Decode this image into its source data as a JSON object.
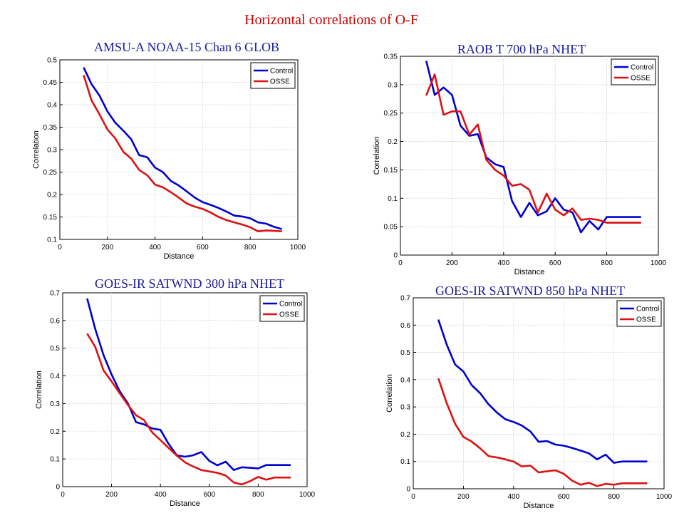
{
  "title": "Horizontal correlations of O-F",
  "title_color": "#cc0000",
  "series_colors": {
    "Control": "#0000d0",
    "OSSE": "#dd1111"
  },
  "chart_data": [
    {
      "type": "line",
      "title": "AMSU-A NOAA-15 Chan 6 GLOB",
      "title_color": "#1a1a99",
      "xlabel": "Distance",
      "ylabel": "Correlation",
      "xlim": [
        0,
        1000
      ],
      "ylim": [
        0.1,
        0.5
      ],
      "xticks": [
        0,
        200,
        400,
        600,
        800,
        1000
      ],
      "yticks": [
        0.1,
        0.15,
        0.2,
        0.25,
        0.3,
        0.35,
        0.4,
        0.45,
        0.5
      ],
      "grid": true,
      "legend": "top-right",
      "x": [
        100,
        133,
        167,
        200,
        233,
        267,
        300,
        333,
        367,
        400,
        433,
        467,
        500,
        533,
        567,
        600,
        633,
        667,
        700,
        733,
        767,
        800,
        833,
        867,
        900,
        933
      ],
      "series": [
        {
          "name": "Control",
          "values": [
            0.483,
            0.446,
            0.42,
            0.385,
            0.36,
            0.342,
            0.323,
            0.288,
            0.283,
            0.26,
            0.25,
            0.23,
            0.22,
            0.207,
            0.193,
            0.183,
            0.177,
            0.17,
            0.162,
            0.153,
            0.151,
            0.147,
            0.138,
            0.135,
            0.128,
            0.123
          ]
        },
        {
          "name": "OSSE",
          "values": [
            0.466,
            0.41,
            0.378,
            0.345,
            0.325,
            0.295,
            0.28,
            0.255,
            0.243,
            0.222,
            0.216,
            0.205,
            0.193,
            0.18,
            0.173,
            0.168,
            0.16,
            0.15,
            0.143,
            0.138,
            0.133,
            0.127,
            0.118,
            0.12,
            0.119,
            0.118
          ]
        }
      ]
    },
    {
      "type": "line",
      "title": "RAOB  T  700 hPa NHET",
      "title_color": "#1a1a99",
      "xlabel": "Distance",
      "ylabel": "Correlation",
      "xlim": [
        0,
        1000
      ],
      "ylim": [
        0,
        0.35
      ],
      "xticks": [
        0,
        200,
        400,
        600,
        800,
        1000
      ],
      "yticks": [
        0,
        0.05,
        0.1,
        0.15,
        0.2,
        0.25,
        0.3,
        0.35
      ],
      "grid": true,
      "legend": "top-right",
      "x": [
        100,
        133,
        167,
        200,
        233,
        267,
        300,
        333,
        367,
        400,
        433,
        467,
        500,
        533,
        567,
        600,
        633,
        667,
        700,
        733,
        767,
        800,
        833,
        867,
        900,
        933
      ],
      "series": [
        {
          "name": "Control",
          "values": [
            0.342,
            0.282,
            0.295,
            0.282,
            0.228,
            0.21,
            0.213,
            0.172,
            0.16,
            0.155,
            0.095,
            0.067,
            0.092,
            0.07,
            0.077,
            0.1,
            0.08,
            0.075,
            0.04,
            0.06,
            0.045,
            0.067,
            0.067,
            0.067,
            0.067,
            0.067
          ]
        },
        {
          "name": "OSSE",
          "values": [
            0.281,
            0.318,
            0.247,
            0.253,
            0.253,
            0.212,
            0.23,
            0.168,
            0.15,
            0.14,
            0.122,
            0.125,
            0.115,
            0.075,
            0.108,
            0.08,
            0.07,
            0.082,
            0.062,
            0.064,
            0.062,
            0.057,
            0.057,
            0.057,
            0.057,
            0.057
          ]
        }
      ]
    },
    {
      "type": "line",
      "title": "GOES-IR SATWND 300 hPa NHET",
      "title_color": "#1a1a99",
      "xlabel": "Distance",
      "ylabel": "Correlation",
      "xlim": [
        0,
        1000
      ],
      "ylim": [
        0,
        0.7
      ],
      "xticks": [
        0,
        200,
        400,
        600,
        800,
        1000
      ],
      "yticks": [
        0,
        0.1,
        0.2,
        0.3,
        0.4,
        0.5,
        0.6,
        0.7
      ],
      "grid": true,
      "legend": "top-right",
      "x": [
        100,
        133,
        167,
        200,
        233,
        267,
        300,
        333,
        367,
        400,
        433,
        467,
        500,
        533,
        567,
        600,
        633,
        667,
        700,
        733,
        767,
        800,
        833,
        867,
        900,
        933
      ],
      "series": [
        {
          "name": "Control",
          "values": [
            0.68,
            0.57,
            0.475,
            0.405,
            0.345,
            0.3,
            0.233,
            0.225,
            0.21,
            0.205,
            0.155,
            0.113,
            0.108,
            0.113,
            0.125,
            0.093,
            0.077,
            0.09,
            0.06,
            0.07,
            0.068,
            0.066,
            0.078,
            0.078,
            0.078,
            0.078
          ]
        },
        {
          "name": "OSSE",
          "values": [
            0.553,
            0.505,
            0.42,
            0.38,
            0.338,
            0.295,
            0.258,
            0.24,
            0.195,
            0.168,
            0.14,
            0.112,
            0.088,
            0.073,
            0.06,
            0.055,
            0.05,
            0.04,
            0.015,
            0.008,
            0.02,
            0.035,
            0.025,
            0.033,
            0.033,
            0.033
          ]
        }
      ]
    },
    {
      "type": "line",
      "title": "GOES-IR SATWND 850 hPa NHET",
      "title_color": "#1a1a99",
      "xlabel": "Distance",
      "ylabel": "Correlation",
      "xlim": [
        0,
        1000
      ],
      "ylim": [
        0,
        0.7
      ],
      "xticks": [
        0,
        200,
        400,
        600,
        800,
        1000
      ],
      "yticks": [
        0,
        0.1,
        0.2,
        0.3,
        0.4,
        0.5,
        0.6,
        0.7
      ],
      "grid": true,
      "legend": "top-right",
      "x": [
        100,
        133,
        167,
        200,
        233,
        267,
        300,
        333,
        367,
        400,
        433,
        467,
        500,
        533,
        567,
        600,
        633,
        667,
        700,
        733,
        767,
        800,
        833,
        867,
        900,
        933
      ],
      "series": [
        {
          "name": "Control",
          "values": [
            0.62,
            0.53,
            0.455,
            0.43,
            0.38,
            0.35,
            0.31,
            0.28,
            0.255,
            0.245,
            0.232,
            0.21,
            0.172,
            0.175,
            0.162,
            0.158,
            0.15,
            0.14,
            0.13,
            0.108,
            0.125,
            0.095,
            0.1,
            0.1,
            0.1,
            0.1
          ]
        },
        {
          "name": "OSSE",
          "values": [
            0.405,
            0.315,
            0.238,
            0.19,
            0.173,
            0.148,
            0.12,
            0.115,
            0.108,
            0.1,
            0.082,
            0.085,
            0.06,
            0.064,
            0.068,
            0.055,
            0.03,
            0.015,
            0.022,
            0.01,
            0.018,
            0.015,
            0.02,
            0.02,
            0.02,
            0.02
          ]
        }
      ]
    }
  ]
}
